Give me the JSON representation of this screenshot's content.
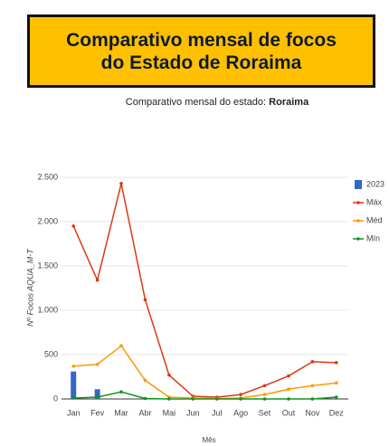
{
  "banner_title": "Comparativo mensal de focos do Estado de Roraima",
  "chart_data": {
    "type": "combo",
    "subtitle": "Comparativo mensal do estado:",
    "subtitle_state": "Roraima",
    "y_label": "Nº Focos AQUA_M-T",
    "x_label": "Mês",
    "categories": [
      "Jan",
      "Fev",
      "Mar",
      "Abr",
      "Mai",
      "Jun",
      "Jul",
      "Ago",
      "Set",
      "Out",
      "Nov",
      "Dez"
    ],
    "ylim": [
      0,
      2500
    ],
    "yticks": [
      0,
      500,
      {
        "value": 1000,
        "label": "1.000"
      },
      {
        "value": 1500,
        "label": "1.500"
      },
      {
        "value": 2000,
        "label": "2.000"
      },
      {
        "value": 2500,
        "label": "2.500"
      }
    ],
    "grid": true,
    "legend": "right",
    "series": [
      {
        "name": "2023",
        "type": "bar",
        "color": "#3366cc",
        "values": [
          310,
          110,
          null,
          null,
          null,
          null,
          null,
          null,
          null,
          null,
          null,
          null
        ]
      },
      {
        "name": "Máx",
        "type": "line",
        "color": "#dc3912",
        "values": [
          1950,
          1340,
          2430,
          1120,
          270,
          30,
          20,
          50,
          150,
          260,
          420,
          410
        ]
      },
      {
        "name": "Méd",
        "type": "line",
        "color": "#ff9900",
        "values": [
          370,
          390,
          600,
          210,
          20,
          10,
          5,
          10,
          50,
          110,
          150,
          180
        ]
      },
      {
        "name": "Mín",
        "type": "line",
        "color": "#109618",
        "values": [
          10,
          20,
          80,
          5,
          0,
          0,
          0,
          0,
          0,
          0,
          0,
          20
        ]
      }
    ]
  }
}
